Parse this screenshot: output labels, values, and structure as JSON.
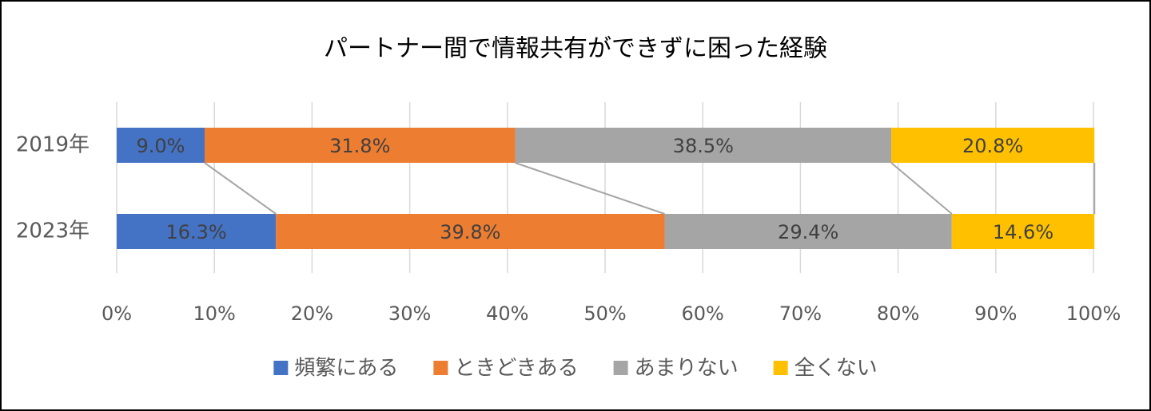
{
  "chart_data": {
    "type": "stacked_barh",
    "title": "パートナー間で情報共有ができずに困った経験",
    "categories": [
      "2019年",
      "2023年"
    ],
    "series": [
      {
        "name": "頻繁にある",
        "color": "#4472c4",
        "values": [
          9.0,
          16.3
        ],
        "value_labels": [
          "9.0%",
          "16.3%"
        ]
      },
      {
        "name": "ときどきある",
        "color": "#ed7d31",
        "values": [
          31.8,
          39.8
        ],
        "value_labels": [
          "31.8%",
          "39.8%"
        ]
      },
      {
        "name": "あまりない",
        "color": "#a5a5a5",
        "values": [
          38.5,
          29.4
        ],
        "value_labels": [
          "38.5%",
          "29.4%"
        ]
      },
      {
        "name": "全くない",
        "color": "#ffc000",
        "values": [
          20.8,
          14.6
        ],
        "value_labels": [
          "20.8%",
          "14.6%"
        ]
      }
    ],
    "xlim": [
      0,
      100
    ],
    "xticks": [
      {
        "value": 0,
        "label": "0%"
      },
      {
        "value": 10,
        "label": "10%"
      },
      {
        "value": 20,
        "label": "20%"
      },
      {
        "value": 30,
        "label": "30%"
      },
      {
        "value": 40,
        "label": "40%"
      },
      {
        "value": 50,
        "label": "50%"
      },
      {
        "value": 60,
        "label": "60%"
      },
      {
        "value": 70,
        "label": "70%"
      },
      {
        "value": 80,
        "label": "80%"
      },
      {
        "value": 90,
        "label": "90%"
      },
      {
        "value": 100,
        "label": "100%"
      }
    ],
    "grid": true,
    "series_lines": true,
    "legend": "bottom"
  }
}
